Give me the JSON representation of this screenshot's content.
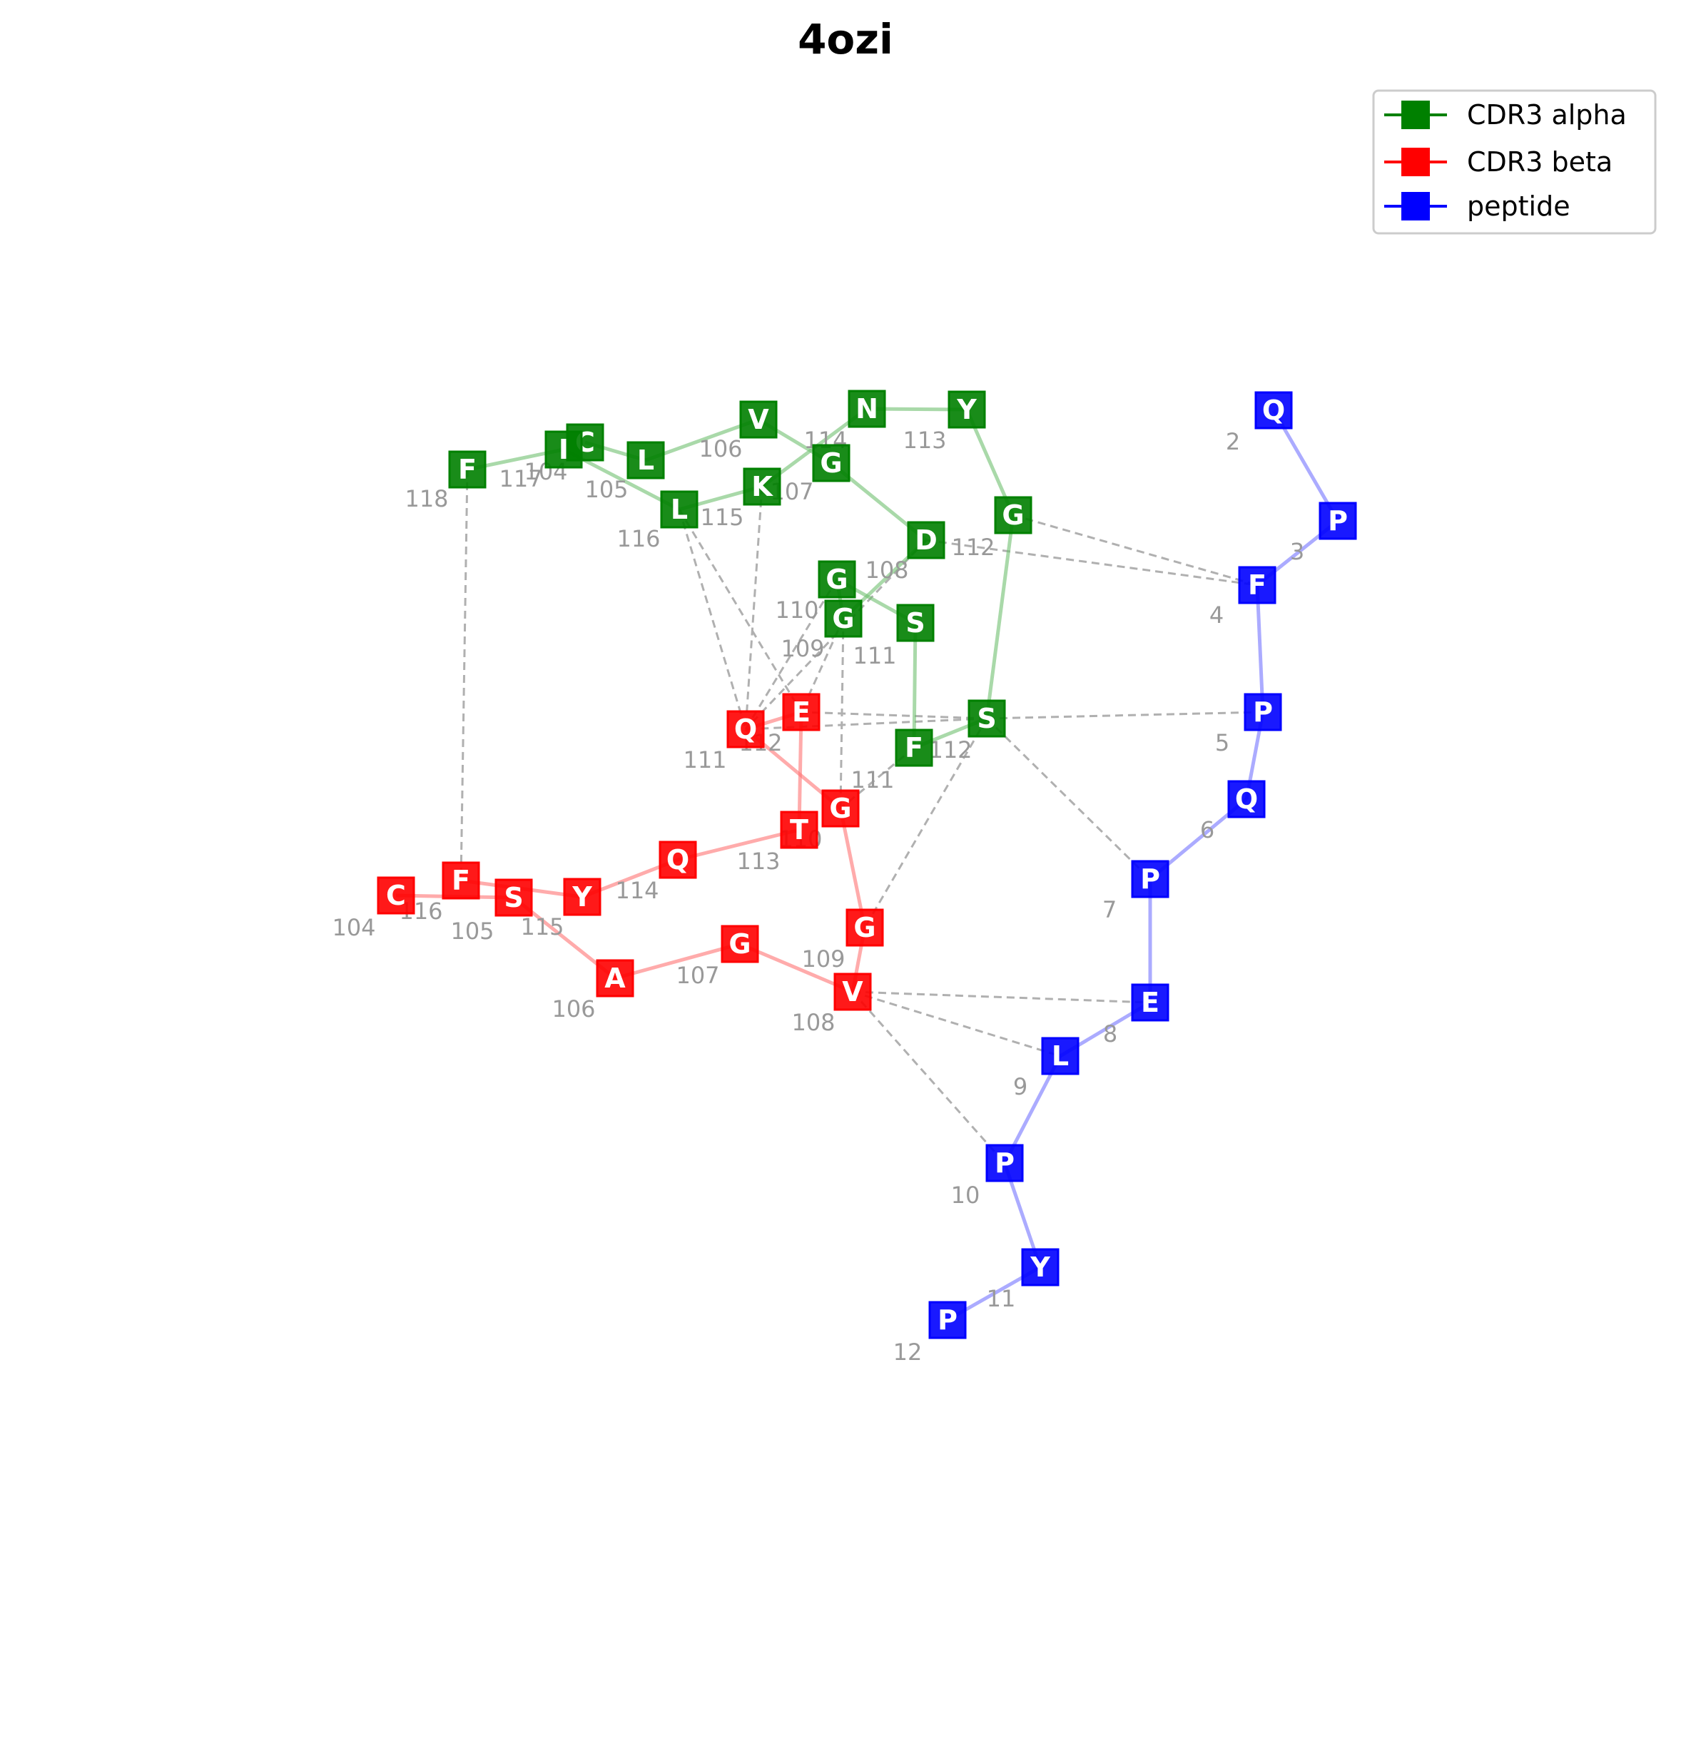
{
  "title": "4ozi",
  "legend": [
    {
      "label": "CDR3 alpha",
      "color": "#008000"
    },
    {
      "label": "CDR3 beta",
      "color": "#ff0000"
    },
    {
      "label": "peptide",
      "color": "#0000ff"
    }
  ],
  "chains": {
    "alpha": {
      "color": "#008000",
      "residues": [
        {
          "id": "a104",
          "aa": "C",
          "num": "104"
        },
        {
          "id": "a105",
          "aa": "L",
          "num": "105"
        },
        {
          "id": "a106",
          "aa": "V",
          "num": "106"
        },
        {
          "id": "a107",
          "aa": "G",
          "num": "107"
        },
        {
          "id": "a108",
          "aa": "D",
          "num": "108"
        },
        {
          "id": "a109",
          "aa": "G",
          "num": "109"
        },
        {
          "id": "a110",
          "aa": "G",
          "num": "110"
        },
        {
          "id": "a111",
          "aa": "S",
          "num": "111"
        },
        {
          "id": "a111b",
          "aa": "F",
          "num": "111"
        },
        {
          "id": "a112b",
          "aa": "S",
          "num": "112"
        },
        {
          "id": "a112",
          "aa": "G",
          "num": "112"
        },
        {
          "id": "a113",
          "aa": "Y",
          "num": "113"
        },
        {
          "id": "a114",
          "aa": "N",
          "num": "114"
        },
        {
          "id": "a115",
          "aa": "K",
          "num": "115"
        },
        {
          "id": "a116",
          "aa": "L",
          "num": "116"
        },
        {
          "id": "a117",
          "aa": "I",
          "num": "117"
        },
        {
          "id": "a118",
          "aa": "F",
          "num": "118"
        }
      ]
    },
    "beta": {
      "color": "#ff0000",
      "residues": [
        {
          "id": "b104",
          "aa": "C",
          "num": "104"
        },
        {
          "id": "b105",
          "aa": "S",
          "num": "105"
        },
        {
          "id": "b106",
          "aa": "A",
          "num": "106"
        },
        {
          "id": "b107",
          "aa": "G",
          "num": "107"
        },
        {
          "id": "b108",
          "aa": "V",
          "num": "108"
        },
        {
          "id": "b109",
          "aa": "G",
          "num": "109"
        },
        {
          "id": "b110",
          "aa": "G",
          "num": "110"
        },
        {
          "id": "b111",
          "aa": "Q",
          "num": "111"
        },
        {
          "id": "b112",
          "aa": "E",
          "num": "112"
        },
        {
          "id": "b113",
          "aa": "T",
          "num": "113"
        },
        {
          "id": "b114",
          "aa": "Q",
          "num": "114"
        },
        {
          "id": "b115",
          "aa": "Y",
          "num": "115"
        },
        {
          "id": "b116",
          "aa": "F",
          "num": "116"
        }
      ]
    },
    "peptide": {
      "color": "#0000ff",
      "residues": [
        {
          "id": "p2",
          "aa": "Q",
          "num": "2"
        },
        {
          "id": "p3",
          "aa": "P",
          "num": "3"
        },
        {
          "id": "p4",
          "aa": "F",
          "num": "4"
        },
        {
          "id": "p5",
          "aa": "P",
          "num": "5"
        },
        {
          "id": "p6",
          "aa": "Q",
          "num": "6"
        },
        {
          "id": "p7",
          "aa": "P",
          "num": "7"
        },
        {
          "id": "p8",
          "aa": "E",
          "num": "8"
        },
        {
          "id": "p9",
          "aa": "L",
          "num": "9"
        },
        {
          "id": "p10",
          "aa": "P",
          "num": "10"
        },
        {
          "id": "p11",
          "aa": "Y",
          "num": "11"
        },
        {
          "id": "p12",
          "aa": "P",
          "num": "12"
        }
      ]
    }
  },
  "contacts": [
    [
      "a118",
      "b116"
    ],
    [
      "a116",
      "b111"
    ],
    [
      "a116",
      "b112"
    ],
    [
      "a115",
      "b111"
    ],
    [
      "a110",
      "b111"
    ],
    [
      "a109",
      "b112"
    ],
    [
      "a108",
      "b111"
    ],
    [
      "a109",
      "b110"
    ],
    [
      "a112b",
      "b111"
    ],
    [
      "a112b",
      "b112"
    ],
    [
      "a111b",
      "b110"
    ],
    [
      "a112b",
      "b109"
    ],
    [
      "a112",
      "p4"
    ],
    [
      "a108",
      "p4"
    ],
    [
      "a112b",
      "p5"
    ],
    [
      "a112b",
      "p7"
    ],
    [
      "b108",
      "p8"
    ],
    [
      "b108",
      "p9"
    ],
    [
      "b108",
      "p10"
    ]
  ]
}
